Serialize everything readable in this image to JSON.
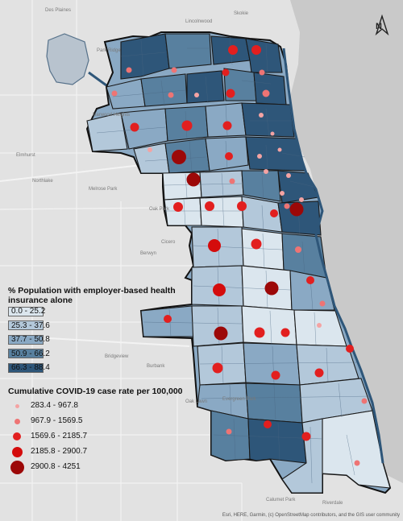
{
  "place_labels": {
    "des_plaines": "Des Plaines",
    "park_ridge": "Park Ridge",
    "elmhurst": "Elmhurst",
    "oak_park": "Oak Park",
    "cicero": "Cicero",
    "berwyn": "Berwyn",
    "oak_lawn": "Oak Lawn",
    "burbank": "Burbank",
    "evergreen_park": "Evergreen Park",
    "lincolnwood": "Lincolnwood",
    "skokie": "Skokie",
    "harwood": "Harwood Heights",
    "northlake": "Northlake",
    "melrose": "Melrose Park",
    "bridgeview": "Bridgeview",
    "calumet": "Calumet Park",
    "riverdale": "Riverdale"
  },
  "north_label": "N",
  "legend_choropleth": {
    "title_line1": "% Population with employer-based health",
    "title_line2": "insurance alone",
    "classes": [
      {
        "label": "0.0 - 25.2",
        "color": "#dbe6ee"
      },
      {
        "label": "25.3 - 37.6",
        "color": "#b3c8da"
      },
      {
        "label": "37.7 - 50.8",
        "color": "#8aa9c4"
      },
      {
        "label": "50.9 - 66.2",
        "color": "#58809f"
      },
      {
        "label": "66.3 - 88.4",
        "color": "#2e5679"
      }
    ]
  },
  "legend_covid": {
    "title": "Cumulative COVID-19 case rate per 100,000",
    "classes": [
      {
        "label": "283.4 - 967.8",
        "color": "#f4a3a3",
        "level": 1
      },
      {
        "label": "967.9 - 1569.5",
        "color": "#ee7474",
        "level": 2
      },
      {
        "label": "1569.6 - 2185.7",
        "color": "#e21f1f",
        "level": 3
      },
      {
        "label": "2185.8 - 2900.7",
        "color": "#d40c0c",
        "level": 4
      },
      {
        "label": "2900.8 - 4251",
        "color": "#9c0808",
        "level": 5
      }
    ]
  },
  "attribution": "Esri, HERE, Garmin, (c) OpenStreetMap contributors, and the GIS user community"
}
